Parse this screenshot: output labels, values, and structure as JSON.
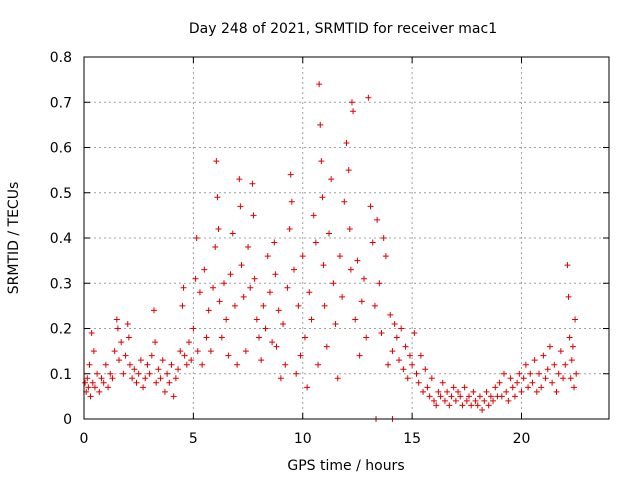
{
  "chart_data": {
    "type": "scatter",
    "title": "Day 248 of 2021, SRMTID for receiver mac1",
    "xlabel": "GPS time / hours",
    "ylabel": "SRMTID / TECUs",
    "xlim": [
      0,
      24
    ],
    "ylim": [
      0,
      0.8
    ],
    "xticks": [
      0,
      5,
      10,
      15,
      20
    ],
    "xtick_labels": [
      "0",
      "5",
      "10",
      "15",
      "20"
    ],
    "yticks": [
      0,
      0.1,
      0.2,
      0.3,
      0.4,
      0.5,
      0.6,
      0.7,
      0.8
    ],
    "ytick_labels": [
      "0",
      "0.1",
      "0.2",
      "0.3",
      "0.4",
      "0.5",
      "0.6",
      "0.7",
      "0.8"
    ],
    "grid": true,
    "marker": "+",
    "color": "#e00000",
    "series": [
      {
        "name": "mac1",
        "points": [
          [
            0.05,
            0.08
          ],
          [
            0.1,
            0.06
          ],
          [
            0.15,
            0.09
          ],
          [
            0.2,
            0.07
          ],
          [
            0.25,
            0.12
          ],
          [
            0.3,
            0.05
          ],
          [
            0.35,
            0.19
          ],
          [
            0.4,
            0.08
          ],
          [
            0.45,
            0.15
          ],
          [
            0.5,
            0.07
          ],
          [
            0.6,
            0.1
          ],
          [
            0.7,
            0.06
          ],
          [
            0.8,
            0.09
          ],
          [
            0.9,
            0.08
          ],
          [
            1.0,
            0.12
          ],
          [
            1.1,
            0.07
          ],
          [
            1.2,
            0.1
          ],
          [
            1.3,
            0.09
          ],
          [
            1.4,
            0.15
          ],
          [
            1.5,
            0.22
          ],
          [
            1.55,
            0.2
          ],
          [
            1.6,
            0.13
          ],
          [
            1.7,
            0.17
          ],
          [
            1.8,
            0.1
          ],
          [
            1.9,
            0.14
          ],
          [
            2.0,
            0.21
          ],
          [
            2.05,
            0.18
          ],
          [
            2.1,
            0.12
          ],
          [
            2.2,
            0.09
          ],
          [
            2.3,
            0.11
          ],
          [
            2.4,
            0.08
          ],
          [
            2.5,
            0.1
          ],
          [
            2.6,
            0.13
          ],
          [
            2.7,
            0.07
          ],
          [
            2.8,
            0.09
          ],
          [
            2.9,
            0.12
          ],
          [
            3.0,
            0.1
          ],
          [
            3.1,
            0.14
          ],
          [
            3.2,
            0.24
          ],
          [
            3.25,
            0.17
          ],
          [
            3.3,
            0.08
          ],
          [
            3.4,
            0.11
          ],
          [
            3.5,
            0.09
          ],
          [
            3.6,
            0.13
          ],
          [
            3.7,
            0.06
          ],
          [
            3.8,
            0.1
          ],
          [
            3.9,
            0.08
          ],
          [
            4.0,
            0.12
          ],
          [
            4.1,
            0.05
          ],
          [
            4.2,
            0.09
          ],
          [
            4.3,
            0.11
          ],
          [
            4.4,
            0.15
          ],
          [
            4.5,
            0.25
          ],
          [
            4.55,
            0.29
          ],
          [
            4.6,
            0.14
          ],
          [
            4.7,
            0.12
          ],
          [
            4.8,
            0.17
          ],
          [
            4.9,
            0.13
          ],
          [
            5.0,
            0.2
          ],
          [
            5.1,
            0.31
          ],
          [
            5.15,
            0.4
          ],
          [
            5.2,
            0.15
          ],
          [
            5.3,
            0.28
          ],
          [
            5.4,
            0.12
          ],
          [
            5.5,
            0.33
          ],
          [
            5.6,
            0.18
          ],
          [
            5.7,
            0.24
          ],
          [
            5.8,
            0.15
          ],
          [
            5.9,
            0.29
          ],
          [
            6.0,
            0.38
          ],
          [
            6.05,
            0.57
          ],
          [
            6.1,
            0.49
          ],
          [
            6.15,
            0.42
          ],
          [
            6.2,
            0.26
          ],
          [
            6.3,
            0.18
          ],
          [
            6.4,
            0.3
          ],
          [
            6.5,
            0.22
          ],
          [
            6.6,
            0.14
          ],
          [
            6.7,
            0.32
          ],
          [
            6.8,
            0.41
          ],
          [
            6.9,
            0.25
          ],
          [
            7.0,
            0.12
          ],
          [
            7.1,
            0.53
          ],
          [
            7.15,
            0.47
          ],
          [
            7.2,
            0.34
          ],
          [
            7.3,
            0.27
          ],
          [
            7.4,
            0.15
          ],
          [
            7.5,
            0.38
          ],
          [
            7.6,
            0.29
          ],
          [
            7.7,
            0.52
          ],
          [
            7.75,
            0.45
          ],
          [
            7.8,
            0.31
          ],
          [
            7.9,
            0.22
          ],
          [
            8.0,
            0.18
          ],
          [
            8.1,
            0.13
          ],
          [
            8.2,
            0.25
          ],
          [
            8.3,
            0.2
          ],
          [
            8.4,
            0.36
          ],
          [
            8.5,
            0.28
          ],
          [
            8.6,
            0.17
          ],
          [
            8.7,
            0.39
          ],
          [
            8.75,
            0.32
          ],
          [
            8.8,
            0.16
          ],
          [
            8.9,
            0.24
          ],
          [
            9.0,
            0.09
          ],
          [
            9.1,
            0.21
          ],
          [
            9.2,
            0.12
          ],
          [
            9.3,
            0.29
          ],
          [
            9.4,
            0.42
          ],
          [
            9.45,
            0.54
          ],
          [
            9.5,
            0.48
          ],
          [
            9.6,
            0.33
          ],
          [
            9.7,
            0.1
          ],
          [
            9.8,
            0.25
          ],
          [
            9.9,
            0.14
          ],
          [
            10.0,
            0.36
          ],
          [
            10.1,
            0.18
          ],
          [
            10.2,
            0.07
          ],
          [
            10.3,
            0.28
          ],
          [
            10.4,
            0.22
          ],
          [
            10.5,
            0.45
          ],
          [
            10.6,
            0.39
          ],
          [
            10.7,
            0.12
          ],
          [
            10.75,
            0.74
          ],
          [
            10.8,
            0.65
          ],
          [
            10.85,
            0.57
          ],
          [
            10.9,
            0.49
          ],
          [
            10.95,
            0.34
          ],
          [
            11.0,
            0.25
          ],
          [
            11.1,
            0.16
          ],
          [
            11.2,
            0.41
          ],
          [
            11.3,
            0.53
          ],
          [
            11.4,
            0.3
          ],
          [
            11.5,
            0.21
          ],
          [
            11.6,
            0.09
          ],
          [
            11.7,
            0.36
          ],
          [
            11.8,
            0.27
          ],
          [
            11.9,
            0.48
          ],
          [
            12.0,
            0.61
          ],
          [
            12.1,
            0.55
          ],
          [
            12.15,
            0.42
          ],
          [
            12.2,
            0.33
          ],
          [
            12.25,
            0.7
          ],
          [
            12.3,
            0.68
          ],
          [
            12.4,
            0.22
          ],
          [
            12.5,
            0.35
          ],
          [
            12.6,
            0.14
          ],
          [
            12.7,
            0.26
          ],
          [
            12.8,
            0.31
          ],
          [
            12.9,
            0.18
          ],
          [
            13.0,
            0.71
          ],
          [
            13.1,
            0.47
          ],
          [
            13.2,
            0.39
          ],
          [
            13.3,
            0.25
          ],
          [
            13.4,
            0.44
          ],
          [
            13.5,
            0.3
          ],
          [
            13.6,
            0.19
          ],
          [
            13.7,
            0.4
          ],
          [
            13.8,
            0.36
          ],
          [
            13.9,
            0.12
          ],
          [
            14.0,
            0.23
          ],
          [
            14.1,
            0.15
          ],
          [
            14.2,
            0.21
          ],
          [
            14.3,
            0.18
          ],
          [
            14.4,
            0.13
          ],
          [
            14.5,
            0.2
          ],
          [
            14.6,
            0.11
          ],
          [
            14.7,
            0.16
          ],
          [
            14.8,
            0.09
          ],
          [
            14.9,
            0.14
          ],
          [
            15.0,
            0.12
          ],
          [
            15.1,
            0.19
          ],
          [
            15.2,
            0.1
          ],
          [
            15.3,
            0.08
          ],
          [
            15.4,
            0.14
          ],
          [
            15.5,
            0.06
          ],
          [
            15.6,
            0.11
          ],
          [
            15.7,
            0.07
          ],
          [
            15.8,
            0.05
          ],
          [
            15.9,
            0.09
          ],
          [
            16.0,
            0.04
          ],
          [
            16.1,
            0.03
          ],
          [
            16.2,
            0.06
          ],
          [
            16.3,
            0.05
          ],
          [
            16.4,
            0.08
          ],
          [
            16.5,
            0.04
          ],
          [
            16.6,
            0.06
          ],
          [
            16.7,
            0.03
          ],
          [
            16.8,
            0.05
          ],
          [
            16.9,
            0.07
          ],
          [
            17.0,
            0.04
          ],
          [
            17.1,
            0.06
          ],
          [
            17.2,
            0.05
          ],
          [
            17.3,
            0.03
          ],
          [
            17.4,
            0.07
          ],
          [
            17.5,
            0.04
          ],
          [
            17.6,
            0.05
          ],
          [
            17.7,
            0.03
          ],
          [
            17.8,
            0.06
          ],
          [
            17.9,
            0.04
          ],
          [
            18.0,
            0.03
          ],
          [
            18.1,
            0.05
          ],
          [
            18.2,
            0.02
          ],
          [
            18.3,
            0.04
          ],
          [
            18.4,
            0.06
          ],
          [
            18.5,
            0.03
          ],
          [
            18.6,
            0.05
          ],
          [
            18.7,
            0.04
          ],
          [
            18.8,
            0.07
          ],
          [
            18.9,
            0.05
          ],
          [
            19.0,
            0.08
          ],
          [
            19.1,
            0.05
          ],
          [
            19.2,
            0.1
          ],
          [
            19.3,
            0.06
          ],
          [
            19.4,
            0.04
          ],
          [
            19.5,
            0.09
          ],
          [
            19.6,
            0.07
          ],
          [
            19.7,
            0.05
          ],
          [
            19.8,
            0.08
          ],
          [
            19.9,
            0.1
          ],
          [
            20.0,
            0.06
          ],
          [
            20.1,
            0.09
          ],
          [
            20.2,
            0.12
          ],
          [
            20.3,
            0.07
          ],
          [
            20.4,
            0.1
          ],
          [
            20.5,
            0.08
          ],
          [
            20.6,
            0.13
          ],
          [
            20.7,
            0.06
          ],
          [
            20.8,
            0.1
          ],
          [
            20.9,
            0.07
          ],
          [
            21.0,
            0.14
          ],
          [
            21.1,
            0.09
          ],
          [
            21.2,
            0.11
          ],
          [
            21.3,
            0.16
          ],
          [
            21.4,
            0.08
          ],
          [
            21.5,
            0.12
          ],
          [
            21.6,
            0.06
          ],
          [
            21.7,
            0.1
          ],
          [
            21.8,
            0.15
          ],
          [
            21.9,
            0.09
          ],
          [
            22.0,
            0.12
          ],
          [
            22.1,
            0.34
          ],
          [
            22.15,
            0.27
          ],
          [
            22.2,
            0.18
          ],
          [
            22.25,
            0.09
          ],
          [
            22.3,
            0.13
          ],
          [
            22.35,
            0.16
          ],
          [
            22.4,
            0.07
          ],
          [
            22.45,
            0.22
          ],
          [
            22.5,
            0.1
          ],
          [
            13.35,
            0.0
          ],
          [
            14.1,
            0.0
          ]
        ]
      }
    ]
  }
}
